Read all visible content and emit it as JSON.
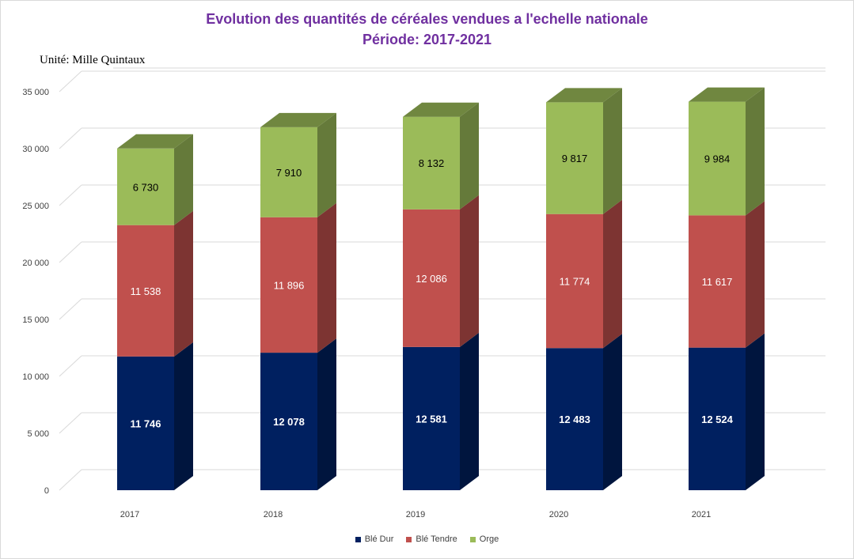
{
  "chart_data": {
    "type": "bar",
    "stacked": true,
    "three_d": true,
    "title": "Evolution des quantités de céréales vendues a l'echelle nationale",
    "subtitle": "Période: 2017-2021",
    "unit_note": "Unité: Mille Quintaux",
    "categories": [
      "2017",
      "2018",
      "2019",
      "2020",
      "2021"
    ],
    "series": [
      {
        "name": "Blé Dur",
        "color": "#002060",
        "values": [
          11746,
          12078,
          12581,
          12483,
          12524
        ],
        "labels": [
          "11 746",
          "12 078",
          "12 581",
          "12 483",
          "12 524"
        ]
      },
      {
        "name": "Blé Tendre",
        "color": "#c0504d",
        "values": [
          11538,
          11896,
          12086,
          11774,
          11617
        ],
        "labels": [
          "11 538",
          "11 896",
          "12 086",
          "11 774",
          "11 617"
        ]
      },
      {
        "name": "Orge",
        "color": "#9bbb59",
        "values": [
          6730,
          7910,
          8132,
          9817,
          9984
        ],
        "labels": [
          "6 730",
          "7 910",
          "8 132",
          "9 817",
          "9 984"
        ]
      }
    ],
    "ylim": [
      0,
      35000
    ],
    "yticks": [
      0,
      5000,
      10000,
      15000,
      20000,
      25000,
      30000,
      35000
    ],
    "ytick_labels": [
      "0",
      "5 000",
      "10 000",
      "15 000",
      "20 000",
      "25 000",
      "30 000",
      "35 000"
    ],
    "grid": true,
    "legend_position": "bottom"
  }
}
